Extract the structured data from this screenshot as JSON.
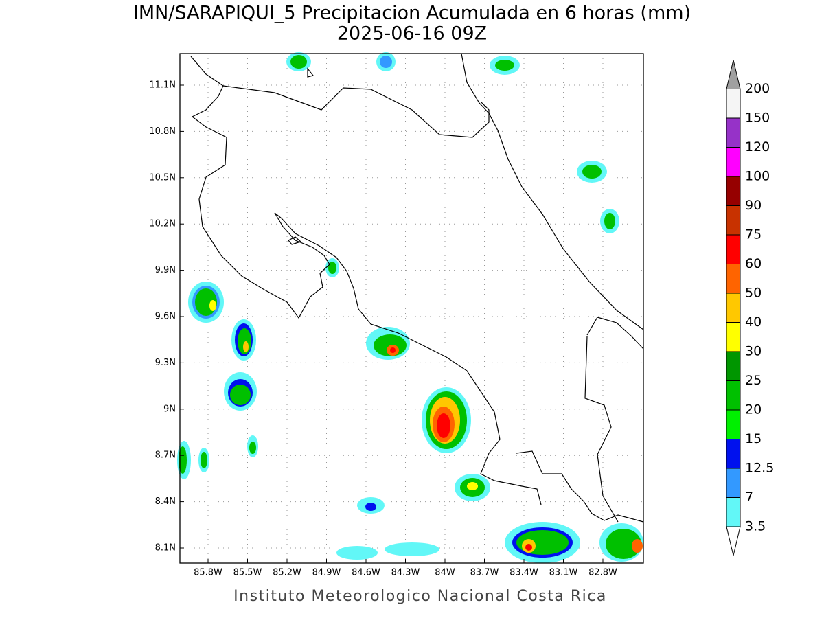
{
  "title": "IMN/SARAPIQUI_5 Precipitacion Acumulada en 6 horas (mm)",
  "subtitle": "2025-06-16 09Z",
  "map": {
    "lon_labels": [
      "85.8W",
      "85.5W",
      "85.2W",
      "84.9W",
      "84.6W",
      "84.3W",
      "84W",
      "83.7W",
      "83.4W",
      "83.1W",
      "82.8W"
    ],
    "lat_labels": [
      "11.1N",
      "10.8N",
      "10.5N",
      "10.2N",
      "9.9N",
      "9.6N",
      "9.3N",
      "9N",
      "8.7N",
      "8.4N",
      "8.1N"
    ]
  },
  "colorbar": {
    "labels": [
      "3.5",
      "7",
      "12.5",
      "15",
      "20",
      "25",
      "30",
      "40",
      "50",
      "60",
      "75",
      "90",
      "100",
      "120",
      "150",
      "200"
    ],
    "colors": [
      "#62f7f7",
      "#3399ff",
      "#0011ee",
      "#00f000",
      "#00c000",
      "#009600",
      "#ffff00",
      "#ffc800",
      "#ff6400",
      "#ff0000",
      "#c83200",
      "#960000",
      "#ff00ff",
      "#9632c8",
      "#f5f5f5"
    ],
    "over_color": "#a0a0a0",
    "under_color": "#ffffff"
  },
  "footer": "Instituto Meteorologico Nacional Costa Rica"
}
